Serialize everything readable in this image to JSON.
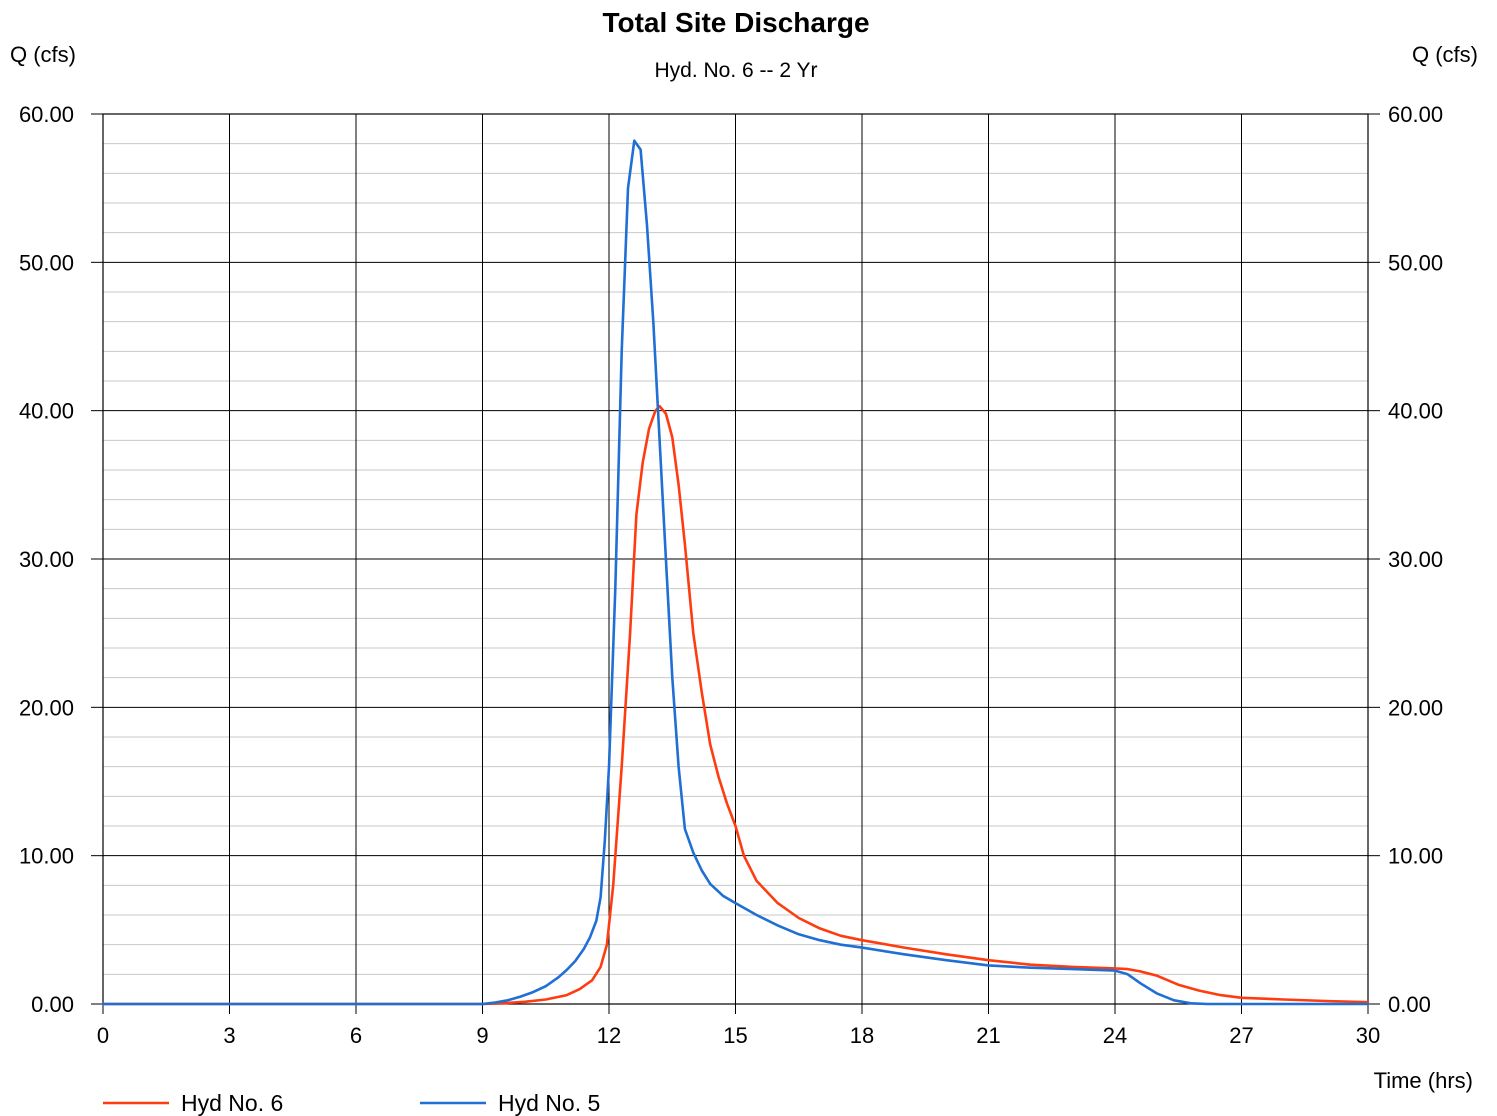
{
  "chart_data": {
    "type": "line",
    "title": "Total Site Discharge",
    "subtitle": "Hyd. No. 6 -- 2 Yr",
    "ylabel_left": "Q (cfs)",
    "ylabel_right": "Q (cfs)",
    "xlabel": "Time (hrs)",
    "xlim": [
      0,
      30
    ],
    "ylim": [
      0,
      60
    ],
    "x_ticks": [
      "0",
      "3",
      "6",
      "9",
      "12",
      "15",
      "18",
      "21",
      "24",
      "27",
      "30"
    ],
    "y_ticks": [
      "0.00",
      "10.00",
      "20.00",
      "30.00",
      "40.00",
      "50.00",
      "60.00"
    ],
    "grid": true,
    "legend_position": "bottom-left",
    "series": [
      {
        "name": "Hyd No. 6",
        "color": "#ff3c10",
        "points": [
          [
            0,
            0.0
          ],
          [
            9.0,
            0.0
          ],
          [
            9.5,
            0.05
          ],
          [
            10.0,
            0.15
          ],
          [
            10.5,
            0.3
          ],
          [
            11.0,
            0.6
          ],
          [
            11.3,
            1.0
          ],
          [
            11.6,
            1.6
          ],
          [
            11.8,
            2.5
          ],
          [
            11.95,
            4.0
          ],
          [
            12.1,
            8.0
          ],
          [
            12.3,
            16.0
          ],
          [
            12.5,
            25.0
          ],
          [
            12.65,
            33.0
          ],
          [
            12.8,
            36.5
          ],
          [
            12.95,
            38.8
          ],
          [
            13.1,
            40.0
          ],
          [
            13.2,
            40.3
          ],
          [
            13.35,
            39.8
          ],
          [
            13.5,
            38.2
          ],
          [
            13.65,
            35.0
          ],
          [
            13.8,
            31.0
          ],
          [
            14.0,
            25.0
          ],
          [
            14.2,
            21.0
          ],
          [
            14.4,
            17.5
          ],
          [
            14.6,
            15.3
          ],
          [
            14.8,
            13.5
          ],
          [
            15.0,
            12.0
          ],
          [
            15.2,
            10.0
          ],
          [
            15.5,
            8.3
          ],
          [
            16.0,
            6.8
          ],
          [
            16.5,
            5.8
          ],
          [
            17.0,
            5.1
          ],
          [
            17.5,
            4.6
          ],
          [
            18.0,
            4.3
          ],
          [
            19.0,
            3.8
          ],
          [
            20.0,
            3.35
          ],
          [
            21.0,
            2.95
          ],
          [
            22.0,
            2.65
          ],
          [
            23.0,
            2.5
          ],
          [
            24.0,
            2.4
          ],
          [
            24.3,
            2.35
          ],
          [
            24.6,
            2.2
          ],
          [
            25.0,
            1.9
          ],
          [
            25.5,
            1.3
          ],
          [
            26.0,
            0.9
          ],
          [
            26.5,
            0.6
          ],
          [
            27.0,
            0.42
          ],
          [
            28.0,
            0.3
          ],
          [
            29.0,
            0.2
          ],
          [
            30.0,
            0.12
          ]
        ]
      },
      {
        "name": "Hyd No. 5",
        "color": "#1f6fd4",
        "points": [
          [
            0,
            0.0
          ],
          [
            9.0,
            0.0
          ],
          [
            9.3,
            0.1
          ],
          [
            9.6,
            0.25
          ],
          [
            9.9,
            0.5
          ],
          [
            10.2,
            0.8
          ],
          [
            10.5,
            1.2
          ],
          [
            10.8,
            1.8
          ],
          [
            11.0,
            2.3
          ],
          [
            11.2,
            2.9
          ],
          [
            11.4,
            3.7
          ],
          [
            11.55,
            4.5
          ],
          [
            11.7,
            5.6
          ],
          [
            11.8,
            7.2
          ],
          [
            11.9,
            11.0
          ],
          [
            12.0,
            16.0
          ],
          [
            12.15,
            28.0
          ],
          [
            12.3,
            44.0
          ],
          [
            12.45,
            55.0
          ],
          [
            12.6,
            58.2
          ],
          [
            12.75,
            57.6
          ],
          [
            12.9,
            52.5
          ],
          [
            13.05,
            46.0
          ],
          [
            13.2,
            38.0
          ],
          [
            13.35,
            30.0
          ],
          [
            13.5,
            22.0
          ],
          [
            13.65,
            16.0
          ],
          [
            13.8,
            11.8
          ],
          [
            14.0,
            10.2
          ],
          [
            14.2,
            9.0
          ],
          [
            14.4,
            8.1
          ],
          [
            14.7,
            7.3
          ],
          [
            15.0,
            6.8
          ],
          [
            15.5,
            6.0
          ],
          [
            16.0,
            5.3
          ],
          [
            16.5,
            4.7
          ],
          [
            17.0,
            4.3
          ],
          [
            17.5,
            4.0
          ],
          [
            18.0,
            3.8
          ],
          [
            19.0,
            3.35
          ],
          [
            20.0,
            2.95
          ],
          [
            21.0,
            2.6
          ],
          [
            22.0,
            2.45
          ],
          [
            23.0,
            2.35
          ],
          [
            24.0,
            2.25
          ],
          [
            24.3,
            2.0
          ],
          [
            24.6,
            1.4
          ],
          [
            25.0,
            0.7
          ],
          [
            25.4,
            0.25
          ],
          [
            25.8,
            0.05
          ],
          [
            26.2,
            0.0
          ],
          [
            30.0,
            0.0
          ]
        ]
      }
    ]
  }
}
